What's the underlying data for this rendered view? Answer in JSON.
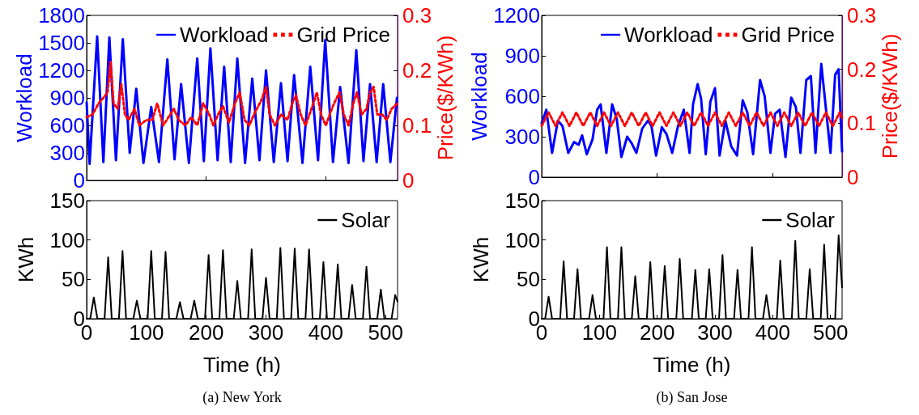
{
  "chart_data": [
    {
      "type": "line",
      "ylabel": "Workload",
      "y2label": "Price($/KWh)",
      "xlim": [
        0,
        520
      ],
      "xticks": [
        0,
        200,
        400
      ],
      "ylim": [
        0,
        1800
      ],
      "yticks": [
        0,
        300,
        600,
        900,
        1200,
        1500,
        1800
      ],
      "y2lim": [
        0,
        0.3
      ],
      "y2ticks": [
        0,
        0.1,
        0.2,
        0.3
      ],
      "tick_labels": "y",
      "legend": "top right",
      "series": [
        {
          "name": "Workload",
          "color": "#0000ff",
          "line_style": "solid",
          "x": [
            0,
            5,
            17.6,
            28,
            38,
            49,
            60.5,
            72,
            83,
            95,
            108,
            121,
            135,
            147,
            158,
            171,
            185,
            196,
            207,
            219,
            230,
            241,
            252,
            265,
            277,
            289,
            300,
            313,
            325,
            336,
            347,
            361,
            374,
            387,
            399,
            412,
            424,
            438,
            451,
            463,
            474,
            485,
            496,
            508,
            519
          ],
          "values": [
            850,
            180,
            1570,
            200,
            1560,
            220,
            1540,
            300,
            1000,
            190,
            800,
            200,
            1320,
            230,
            1050,
            190,
            1330,
            210,
            1440,
            220,
            1240,
            200,
            1330,
            190,
            1110,
            220,
            1200,
            200,
            1060,
            210,
            1150,
            190,
            1240,
            220,
            1530,
            200,
            1020,
            190,
            1420,
            210,
            1050,
            200,
            1050,
            200,
            900
          ]
        },
        {
          "name": "Grid Price",
          "color": "#ff0000",
          "line_style": "dotted",
          "axis": "y2",
          "x": [
            0,
            10,
            20,
            28,
            35,
            40,
            45,
            52,
            58,
            64,
            70,
            80,
            88,
            100,
            110,
            118,
            128,
            140,
            146,
            154,
            165,
            175,
            185,
            195,
            205,
            212,
            220,
            228,
            238,
            248,
            256,
            264,
            272,
            282,
            292,
            300,
            306,
            315,
            325,
            336,
            344,
            350,
            358,
            366,
            376,
            385,
            392,
            400,
            410,
            416,
            423,
            430,
            438,
            446,
            452,
            460,
            468,
            474,
            480,
            486,
            494,
            502,
            510,
            520
          ],
          "values": [
            0.115,
            0.12,
            0.14,
            0.15,
            0.16,
            0.215,
            0.14,
            0.13,
            0.175,
            0.12,
            0.11,
            0.13,
            0.1,
            0.11,
            0.11,
            0.14,
            0.1,
            0.12,
            0.13,
            0.11,
            0.1,
            0.115,
            0.1,
            0.14,
            0.12,
            0.1,
            0.12,
            0.135,
            0.105,
            0.14,
            0.16,
            0.11,
            0.1,
            0.125,
            0.145,
            0.17,
            0.12,
            0.1,
            0.12,
            0.11,
            0.14,
            0.155,
            0.12,
            0.1,
            0.13,
            0.16,
            0.12,
            0.1,
            0.13,
            0.145,
            0.16,
            0.12,
            0.1,
            0.14,
            0.16,
            0.12,
            0.13,
            0.16,
            0.17,
            0.12,
            0.12,
            0.11,
            0.13,
            0.14
          ]
        }
      ]
    },
    {
      "type": "line",
      "xlabel": "Time (h)",
      "ylabel": "KWh",
      "xlim": [
        0,
        520
      ],
      "xticks": [
        0,
        100,
        200,
        300,
        400,
        500
      ],
      "ylim": [
        0,
        150
      ],
      "yticks": [
        0,
        50,
        100,
        150
      ],
      "legend": "top right",
      "annotations": [
        "(a) New York"
      ],
      "series": [
        {
          "name": "Solar",
          "color": "#000000",
          "line_style": "solid",
          "x": [
            0,
            6,
            12,
            18,
            30,
            36,
            42,
            54,
            60,
            66,
            78,
            84,
            90,
            102,
            108,
            114,
            126,
            132,
            138,
            150,
            156,
            162,
            174,
            180,
            186,
            198,
            204,
            210,
            222,
            228,
            234,
            246,
            252,
            258,
            270,
            276,
            282,
            294,
            300,
            306,
            318,
            324,
            330,
            342,
            348,
            354,
            366,
            372,
            378,
            390,
            396,
            402,
            414,
            420,
            426,
            438,
            444,
            450,
            462,
            468,
            474,
            486,
            492,
            498,
            510,
            516,
            520
          ],
          "values": [
            0,
            0,
            27,
            0,
            0,
            78,
            0,
            0,
            86,
            0,
            0,
            23,
            0,
            0,
            86,
            0,
            0,
            85,
            0,
            0,
            21,
            0,
            0,
            23,
            0,
            0,
            81,
            0,
            0,
            87,
            0,
            0,
            48,
            0,
            0,
            88,
            0,
            0,
            52,
            0,
            0,
            90,
            0,
            0,
            89,
            0,
            0,
            88,
            0,
            0,
            72,
            0,
            0,
            69,
            0,
            0,
            43,
            0,
            0,
            66,
            0,
            0,
            37,
            0,
            0,
            30,
            22
          ]
        }
      ]
    },
    {
      "type": "line",
      "ylabel": "Workload",
      "y2label": "Price($/KWh)",
      "xlim": [
        0,
        520
      ],
      "xticks": [
        0,
        200,
        400
      ],
      "ylim": [
        0,
        1200
      ],
      "yticks": [
        0,
        300,
        600,
        900,
        1200
      ],
      "y2lim": [
        0,
        0.3
      ],
      "y2ticks": [
        0,
        0.1,
        0.2,
        0.3
      ],
      "tick_labels": "y",
      "legend": "top right",
      "series": [
        {
          "name": "Workload",
          "color": "#0000ff",
          "line_style": "solid",
          "x": [
            0,
            8,
            18,
            28,
            36,
            46,
            56,
            64,
            70,
            78,
            88,
            96,
            102,
            112,
            122,
            130,
            138,
            148,
            156,
            164,
            174,
            184,
            190,
            198,
            208,
            216,
            226,
            236,
            246,
            256,
            262,
            270,
            276,
            284,
            292,
            300,
            308,
            318,
            328,
            338,
            348,
            356,
            366,
            378,
            386,
            396,
            404,
            412,
            422,
            432,
            440,
            448,
            458,
            466,
            474,
            484,
            492,
            500,
            508,
            514,
            520
          ],
          "values": [
            400,
            500,
            180,
            420,
            380,
            180,
            260,
            240,
            310,
            170,
            280,
            500,
            540,
            180,
            540,
            430,
            150,
            300,
            250,
            180,
            360,
            420,
            380,
            160,
            370,
            320,
            180,
            380,
            500,
            180,
            540,
            690,
            580,
            170,
            560,
            660,
            160,
            420,
            230,
            160,
            570,
            480,
            170,
            720,
            600,
            180,
            470,
            500,
            150,
            590,
            520,
            180,
            720,
            750,
            180,
            840,
            510,
            180,
            760,
            800,
            190
          ]
        },
        {
          "name": "Grid Price",
          "color": "#ff0000",
          "line_style": "dotted",
          "axis": "y2",
          "x": [
            0,
            12,
            24,
            36,
            48,
            60,
            72,
            84,
            96,
            108,
            120,
            132,
            144,
            156,
            168,
            180,
            192,
            204,
            216,
            228,
            240,
            252,
            264,
            276,
            288,
            300,
            312,
            324,
            336,
            348,
            360,
            372,
            384,
            396,
            408,
            420,
            432,
            444,
            456,
            468,
            480,
            492,
            504,
            516,
            520
          ],
          "values": [
            0.095,
            0.12,
            0.095,
            0.12,
            0.095,
            0.12,
            0.095,
            0.12,
            0.095,
            0.12,
            0.095,
            0.12,
            0.095,
            0.12,
            0.095,
            0.12,
            0.095,
            0.12,
            0.095,
            0.12,
            0.095,
            0.12,
            0.095,
            0.12,
            0.095,
            0.12,
            0.095,
            0.12,
            0.095,
            0.12,
            0.095,
            0.12,
            0.095,
            0.12,
            0.095,
            0.12,
            0.095,
            0.12,
            0.095,
            0.12,
            0.095,
            0.12,
            0.095,
            0.12,
            0.11
          ]
        }
      ]
    },
    {
      "type": "line",
      "xlabel": "Time (h)",
      "ylabel": "KWh",
      "xlim": [
        0,
        520
      ],
      "xticks": [
        0,
        100,
        200,
        300,
        400,
        500
      ],
      "ylim": [
        0,
        150
      ],
      "yticks": [
        0,
        50,
        100,
        150
      ],
      "legend": "top right",
      "annotations": [
        "(b) San Jose"
      ],
      "series": [
        {
          "name": "Solar",
          "color": "#000000",
          "line_style": "solid",
          "x": [
            0,
            6,
            12,
            18,
            32,
            38,
            44,
            56,
            62,
            68,
            82,
            88,
            94,
            107,
            113,
            119,
            132,
            138,
            144,
            156,
            162,
            168,
            182,
            188,
            194,
            207,
            213,
            219,
            233,
            239,
            245,
            260,
            266,
            272,
            284,
            290,
            296,
            307,
            313,
            319,
            333,
            339,
            345,
            358,
            364,
            370,
            383,
            389,
            395,
            407,
            413,
            419,
            433,
            439,
            445,
            458,
            464,
            470,
            483,
            489,
            495,
            508,
            514,
            520
          ],
          "values": [
            0,
            0,
            28,
            0,
            0,
            73,
            0,
            0,
            63,
            0,
            0,
            30,
            0,
            0,
            91,
            0,
            0,
            91,
            0,
            0,
            54,
            0,
            0,
            72,
            0,
            0,
            67,
            0,
            0,
            76,
            0,
            0,
            62,
            0,
            0,
            63,
            0,
            0,
            81,
            0,
            0,
            62,
            0,
            0,
            91,
            0,
            0,
            30,
            0,
            0,
            74,
            0,
            0,
            99,
            0,
            0,
            63,
            0,
            0,
            94,
            0,
            0,
            106,
            40
          ]
        }
      ]
    }
  ]
}
